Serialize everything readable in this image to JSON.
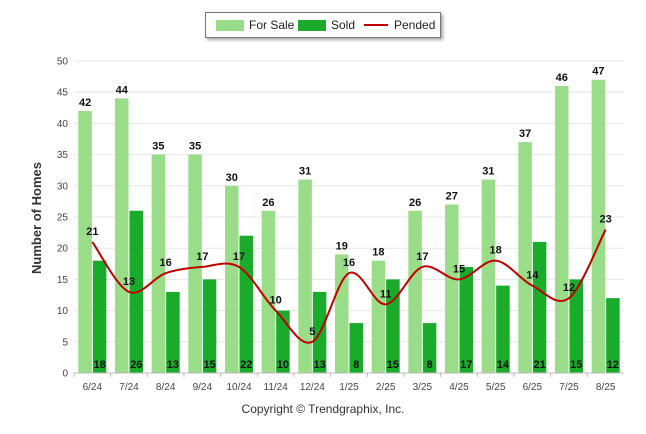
{
  "legend": {
    "for_sale": "For Sale",
    "sold": "Sold",
    "pended": "Pended"
  },
  "footer": "Copyright © Trendgraphix, Inc.",
  "colors": {
    "for_sale": "#99dd88",
    "sold": "#1aab2a",
    "pended": "#c00000",
    "grid": "#e6e6e6"
  },
  "chart_data": {
    "type": "bar",
    "ylabel": "Number of Homes",
    "xlabel": "",
    "ylim": [
      0,
      50
    ],
    "yticks": [
      0,
      5,
      10,
      15,
      20,
      25,
      30,
      35,
      40,
      45,
      50
    ],
    "grid": true,
    "legend_position": "top-center",
    "categories": [
      "6/24",
      "7/24",
      "8/24",
      "9/24",
      "10/24",
      "11/24",
      "12/24",
      "1/25",
      "2/25",
      "3/25",
      "4/25",
      "5/25",
      "6/25",
      "7/25",
      "8/25"
    ],
    "series": [
      {
        "name": "For Sale",
        "type": "bar",
        "values": [
          42,
          44,
          35,
          35,
          30,
          26,
          31,
          19,
          18,
          26,
          27,
          31,
          37,
          46,
          47
        ]
      },
      {
        "name": "Sold",
        "type": "bar",
        "values": [
          18,
          26,
          13,
          15,
          22,
          10,
          13,
          8,
          15,
          8,
          17,
          14,
          21,
          15,
          12
        ]
      },
      {
        "name": "Pended",
        "type": "line",
        "values": [
          21,
          13,
          16,
          17,
          17,
          10,
          5,
          16,
          11,
          17,
          15,
          18,
          14,
          12,
          23
        ]
      }
    ]
  }
}
